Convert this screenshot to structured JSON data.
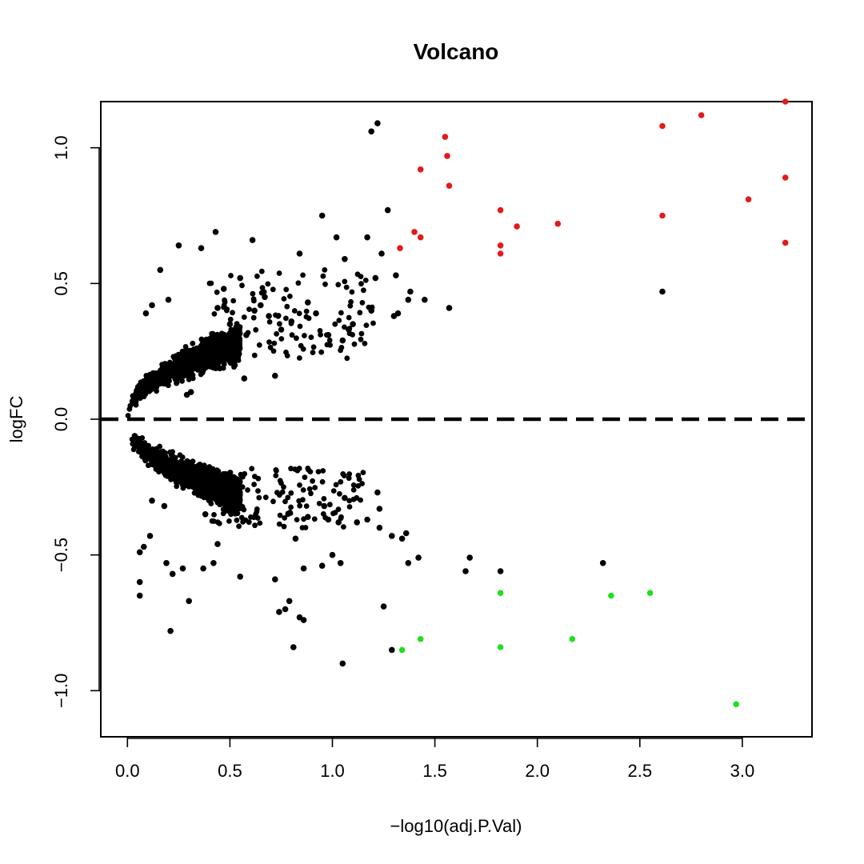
{
  "chart_data": {
    "type": "scatter",
    "title": "Volcano",
    "xlabel": "−log10(adj.P.Val)",
    "ylabel": "logFC",
    "xlim": [
      -0.13,
      3.34
    ],
    "ylim": [
      -1.17,
      1.17
    ],
    "x_ticks": [
      0.0,
      0.5,
      1.0,
      1.5,
      2.0,
      2.5,
      3.0
    ],
    "x_tick_labels": [
      "0.0",
      "0.5",
      "1.0",
      "1.5",
      "2.0",
      "2.5",
      "3.0"
    ],
    "y_ticks": [
      -1.0,
      -0.5,
      0.0,
      0.5,
      1.0
    ],
    "y_tick_labels": [
      "−1.0",
      "−0.5",
      "0.0",
      "0.5",
      "1.0"
    ],
    "reference_line": {
      "y": 0,
      "style": "dashed",
      "color": "#000000"
    },
    "grid": false,
    "legend": "none",
    "series": [
      {
        "color": "#e31a1c",
        "points": [
          [
            1.33,
            0.63
          ],
          [
            1.4,
            0.69
          ],
          [
            1.43,
            0.67
          ],
          [
            1.43,
            0.92
          ],
          [
            1.55,
            1.04
          ],
          [
            1.56,
            0.97
          ],
          [
            1.57,
            0.86
          ],
          [
            1.82,
            0.77
          ],
          [
            1.82,
            0.64
          ],
          [
            1.82,
            0.61
          ],
          [
            1.9,
            0.71
          ],
          [
            2.1,
            0.72
          ],
          [
            2.61,
            1.08
          ],
          [
            2.61,
            0.75
          ],
          [
            2.8,
            1.12
          ],
          [
            3.03,
            0.81
          ],
          [
            3.21,
            0.89
          ],
          [
            3.21,
            0.65
          ],
          [
            3.21,
            1.17
          ]
        ]
      },
      {
        "color": "#1fe01f",
        "points": [
          [
            1.34,
            -0.85
          ],
          [
            1.43,
            -0.81
          ],
          [
            1.82,
            -0.64
          ],
          [
            1.82,
            -0.84
          ],
          [
            2.17,
            -0.81
          ],
          [
            2.36,
            -0.65
          ],
          [
            2.55,
            -0.64
          ],
          [
            2.97,
            -1.05
          ]
        ]
      },
      {
        "color": "#000000",
        "points": [
          [
            1.22,
            1.09
          ],
          [
            1.19,
            1.06
          ],
          [
            1.27,
            0.77
          ],
          [
            0.95,
            0.75
          ],
          [
            1.57,
            0.41
          ],
          [
            2.61,
            0.47
          ],
          [
            1.45,
            0.44
          ],
          [
            1.38,
            0.47
          ],
          [
            1.31,
            0.53
          ],
          [
            1.24,
            0.61
          ],
          [
            0.43,
            0.69
          ],
          [
            0.61,
            0.66
          ],
          [
            0.36,
            0.63
          ],
          [
            0.25,
            0.64
          ],
          [
            0.16,
            0.55
          ],
          [
            1.17,
            0.67
          ],
          [
            1.02,
            0.67
          ],
          [
            0.84,
            0.61
          ],
          [
            1.06,
            0.59
          ],
          [
            1.21,
            0.52
          ],
          [
            1.37,
            0.44
          ],
          [
            1.32,
            0.39
          ],
          [
            1.3,
            0.38
          ],
          [
            1.19,
            0.4
          ],
          [
            1.08,
            0.33
          ],
          [
            1.05,
            0.29
          ],
          [
            0.92,
            0.39
          ],
          [
            0.88,
            0.43
          ],
          [
            0.69,
            0.38
          ],
          [
            0.67,
            0.45
          ],
          [
            0.72,
            0.16
          ],
          [
            0.57,
            0.15
          ],
          [
            0.31,
            0.1
          ],
          [
            0.82,
            -0.44
          ],
          [
            0.88,
            -0.36
          ],
          [
            0.98,
            -0.37
          ],
          [
            1.03,
            -0.38
          ],
          [
            1.12,
            -0.38
          ],
          [
            1.22,
            -0.27
          ],
          [
            1.23,
            -0.33
          ],
          [
            1.29,
            -0.43
          ],
          [
            1.34,
            -0.44
          ],
          [
            1.36,
            -0.42
          ],
          [
            1.42,
            -0.51
          ],
          [
            1.37,
            -0.53
          ],
          [
            1.65,
            -0.56
          ],
          [
            1.67,
            -0.51
          ],
          [
            1.82,
            -0.56
          ],
          [
            2.32,
            -0.53
          ],
          [
            1.25,
            -0.69
          ],
          [
            1.29,
            -0.85
          ],
          [
            1.05,
            -0.9
          ],
          [
            0.81,
            -0.84
          ],
          [
            0.86,
            -0.74
          ],
          [
            0.84,
            -0.73
          ],
          [
            0.79,
            -0.67
          ],
          [
            0.77,
            -0.7
          ],
          [
            0.74,
            -0.71
          ],
          [
            0.72,
            -0.59
          ],
          [
            0.55,
            -0.58
          ],
          [
            0.3,
            -0.67
          ],
          [
            0.21,
            -0.78
          ],
          [
            0.06,
            -0.65
          ],
          [
            0.06,
            -0.6
          ],
          [
            0.06,
            -0.49
          ],
          [
            0.08,
            -0.47
          ],
          [
            0.11,
            -0.43
          ],
          [
            0.19,
            -0.53
          ],
          [
            0.22,
            -0.57
          ],
          [
            0.27,
            -0.55
          ],
          [
            0.37,
            -0.55
          ],
          [
            0.42,
            -0.53
          ],
          [
            1.0,
            -0.5
          ],
          [
            1.04,
            -0.53
          ],
          [
            0.95,
            -0.54
          ],
          [
            0.86,
            -0.55
          ],
          [
            1.17,
            -0.37
          ],
          [
            1.23,
            -0.4
          ],
          [
            0.96,
            -0.32
          ],
          [
            1.06,
            -0.29
          ],
          [
            0.48,
            -0.3
          ],
          [
            0.38,
            -0.35
          ],
          [
            0.44,
            -0.46
          ],
          [
            0.12,
            -0.3
          ],
          [
            0.18,
            -0.32
          ],
          [
            0.5,
            0.35
          ],
          [
            0.58,
            0.31
          ],
          [
            0.62,
            0.4
          ],
          [
            0.65,
            0.42
          ],
          [
            0.75,
            0.33
          ],
          [
            0.8,
            0.36
          ],
          [
            0.98,
            0.31
          ],
          [
            1.1,
            0.35
          ],
          [
            0.47,
            0.48
          ],
          [
            0.55,
            0.52
          ],
          [
            0.2,
            0.44
          ],
          [
            0.12,
            0.42
          ],
          [
            0.09,
            0.39
          ],
          [
            0.44,
            0.41
          ],
          [
            0.29,
            0.09
          ]
        ]
      }
    ],
    "dense_clusters": [
      {
        "color": "#000000",
        "sign": 1,
        "count": 1500,
        "x_max": 0.55,
        "curve": "y^2 ≈ 0.13·x"
      },
      {
        "color": "#000000",
        "sign": -1,
        "count": 1500,
        "x_max": 0.55,
        "curve": "y^2 ≈ 0.13·x"
      },
      {
        "color": "#000000",
        "sign": 1,
        "count": 120,
        "x_range": [
          0.4,
          1.2
        ],
        "y_range": [
          0.22,
          0.55
        ]
      },
      {
        "color": "#000000",
        "sign": -1,
        "count": 140,
        "x_range": [
          0.4,
          1.15
        ],
        "y_range": [
          0.18,
          0.4
        ]
      }
    ]
  }
}
